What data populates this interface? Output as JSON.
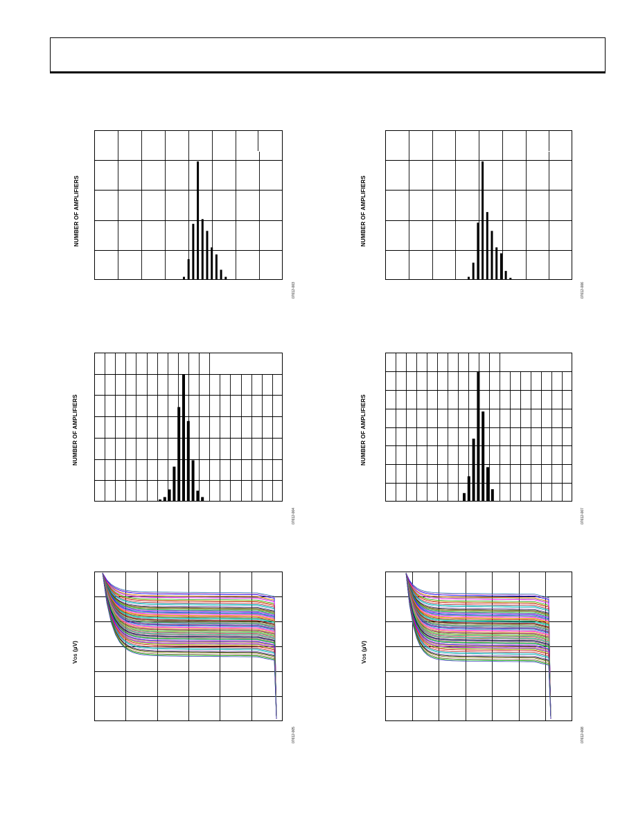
{
  "chart_data": [
    {
      "type": "bar",
      "id": "hist-top-left",
      "ylabel": "NUMBER OF AMPLIFIERS",
      "fig_id": "07612-003",
      "grid": true,
      "values": [
        0.02,
        0.17,
        0.47,
        1.0,
        0.51,
        0.41,
        0.27,
        0.21,
        0.08,
        0.02
      ]
    },
    {
      "type": "bar",
      "id": "hist-top-right",
      "ylabel": "NUMBER OF AMPLIFIERS",
      "fig_id": "07612-006",
      "grid": true,
      "values": [
        0.02,
        0.14,
        0.48,
        1.0,
        0.57,
        0.41,
        0.27,
        0.22,
        0.07,
        0.01
      ]
    },
    {
      "type": "bar",
      "id": "hist-mid-left",
      "ylabel": "NUMBER OF AMPLIFIERS",
      "fig_id": "07612-004",
      "grid": true,
      "values": [
        0.01,
        0.03,
        0.09,
        0.27,
        0.74,
        1.0,
        0.63,
        0.32,
        0.08,
        0.03
      ]
    },
    {
      "type": "bar",
      "id": "hist-mid-right",
      "ylabel": "NUMBER OF AMPLIFIERS",
      "fig_id": "07612-007",
      "grid": true,
      "values": [
        0.06,
        0.19,
        0.48,
        1.0,
        0.69,
        0.26,
        0.09
      ]
    },
    {
      "type": "line",
      "id": "vos-bottom-left",
      "ylabel": "V",
      "ylabel_sub": "OS",
      "ylabel_unit": "(µV)",
      "fig_id": "07612-005",
      "grid": true,
      "levels": [
        0.05,
        0.08,
        0.11,
        0.14,
        0.17,
        0.19,
        0.21,
        0.23,
        0.25,
        0.27,
        0.29,
        0.31,
        0.33,
        0.35,
        0.37,
        0.39,
        0.41,
        0.43,
        0.45,
        0.47,
        0.49,
        0.52,
        0.55,
        0.58
      ]
    },
    {
      "type": "line",
      "id": "vos-bottom-right",
      "ylabel": "V",
      "ylabel_sub": "OS",
      "ylabel_unit": "(µV)",
      "fig_id": "07612-008",
      "grid": true,
      "levels": [
        0.05,
        0.08,
        0.11,
        0.14,
        0.17,
        0.19,
        0.21,
        0.23,
        0.25,
        0.27,
        0.29,
        0.31,
        0.33,
        0.35,
        0.37,
        0.39,
        0.41,
        0.43,
        0.45,
        0.47,
        0.49,
        0.52,
        0.55,
        0.58
      ]
    }
  ],
  "colors": {
    "grid": "#000000",
    "bar": "#000000",
    "lines": [
      "#1f77b4",
      "#ff7f0e",
      "#2ca02c",
      "#d62728",
      "#9467bd",
      "#8c564b",
      "#e377c2",
      "#7f7f7f",
      "#bcbd22",
      "#17becf",
      "#000000",
      "#00c000",
      "#0000ff",
      "#ff00ff",
      "#c00000",
      "#00a0a0",
      "#808000",
      "#4040c0"
    ]
  }
}
